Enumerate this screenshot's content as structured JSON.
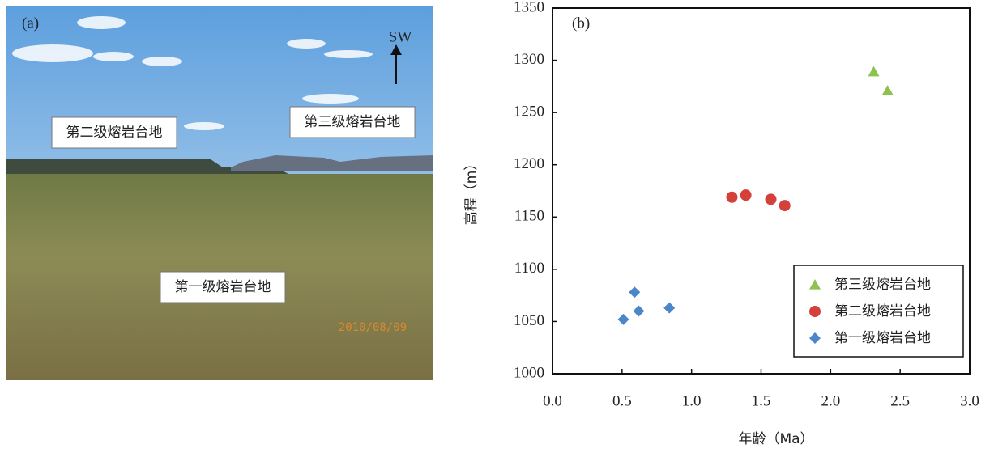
{
  "photo": {
    "panel_label": "(a)",
    "direction": "SW",
    "labels": [
      "第二级熔岩台地",
      "第三级熔岩台地",
      "第一级熔岩台地"
    ],
    "date": "2010/08/09"
  },
  "chart_data": {
    "type": "scatter",
    "panel_label": "(b)",
    "x_label": "年龄（Ma）",
    "y_label": "高程（m）",
    "xlim": [
      0,
      3
    ],
    "ylim": [
      1000,
      1350
    ],
    "xticks": [
      {
        "value": 0,
        "label": "0.0"
      },
      0.5,
      {
        "value": 1,
        "label": "1.0"
      },
      1.5,
      {
        "value": 2,
        "label": "2.0"
      },
      2.5,
      {
        "value": 3,
        "label": "3.0"
      }
    ],
    "yticks": [
      1000,
      1050,
      1100,
      1150,
      1200,
      1250,
      1300,
      1350
    ],
    "legend": "lower right",
    "series": [
      {
        "name": "第三级熔岩台地",
        "color": "#8dc152",
        "marker": "triangle",
        "x": [
          2.31,
          2.41
        ],
        "values": [
          1289,
          1271
        ]
      },
      {
        "name": "第二级熔岩台地",
        "color": "#d6403a",
        "marker": "circle",
        "x": [
          1.29,
          1.39,
          1.57,
          1.67
        ],
        "values": [
          1169,
          1171,
          1167,
          1161
        ]
      },
      {
        "name": "第一级熔岩台地",
        "color": "#4a86c8",
        "marker": "diamond",
        "x": [
          0.51,
          0.59,
          0.62,
          0.84
        ],
        "values": [
          1052,
          1078,
          1060,
          1063
        ]
      }
    ]
  }
}
